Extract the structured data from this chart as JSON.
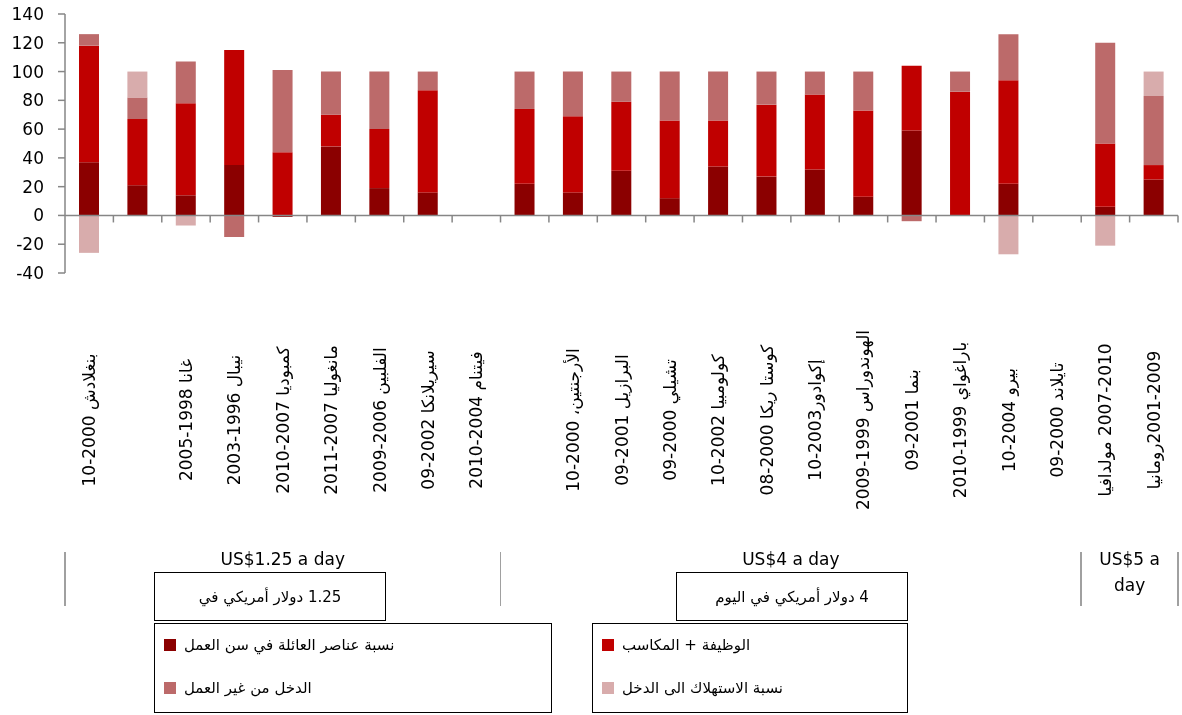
{
  "chart_data": {
    "type": "bar",
    "stacked": true,
    "categories": [
      "بنغلادش 2000-10",
      null,
      "غانا 1998-2005",
      "نيبال 1996-2003",
      "كمبوديا 2007-2010",
      "مانغوليا 2007-2011",
      "الفلبين 2006-2009",
      "سيريلانكا 2002-09",
      "فيتنام 2004-2010",
      null,
      "الأرجنتين، 2000-10",
      "البرازيل 2001-09",
      "تشيلي 2000-09",
      "كولومبيا 2002-10",
      "كوستا ريكا 2000-08",
      "إكوادور2003-10",
      "الهوندوراس 1999-2009",
      "بنما 2001-09",
      "باراغواي 1999-2010",
      "بيرو 2004-10",
      "تايلاند 2000-09",
      "2007-2010 مولدافيا",
      "2001-2009رومانيا"
    ],
    "series": [
      {
        "name": "نسبة عناصر العائلة في سن العمل",
        "color": "#8b0000",
        "values": [
          37,
          21,
          14,
          35,
          -1,
          48,
          19,
          16,
          null,
          22,
          16,
          31,
          12,
          34,
          27,
          32,
          13,
          59,
          null,
          22,
          null,
          6,
          25
        ]
      },
      {
        "name": "الوظيفة + المكاسب",
        "color": "#c00000",
        "values": [
          81,
          46,
          64,
          80,
          44,
          22,
          41,
          71,
          null,
          52,
          53,
          48,
          54,
          32,
          50,
          52,
          60,
          45,
          86,
          72,
          null,
          44,
          10
        ]
      },
      {
        "name": "الدخل من غير العمل",
        "color": "#bc6a6a",
        "values": [
          8,
          15,
          29,
          -15,
          57,
          30,
          40,
          13,
          null,
          26,
          31,
          21,
          34,
          34,
          23,
          16,
          27,
          -4,
          14,
          32,
          null,
          70,
          48
        ]
      },
      {
        "name": "نسبة الاستهلاك الى الدخل",
        "color": "#d8acac",
        "values": [
          -26,
          18,
          -7,
          null,
          null,
          null,
          null,
          null,
          null,
          null,
          null,
          null,
          null,
          null,
          null,
          null,
          null,
          null,
          null,
          -27,
          null,
          -21,
          17
        ]
      }
    ],
    "ylim": [
      -40,
      140
    ],
    "yticks": [
      -40,
      -20,
      0,
      20,
      40,
      60,
      80,
      100,
      120,
      140
    ],
    "ref_lines": [
      {
        "axis": "y",
        "value": 0,
        "color": "#868686"
      }
    ],
    "legend": "bottom",
    "annotations": [
      "US$1.25 a day",
      "US$4 a day",
      "US$5 a day",
      "1.25 دولار أمريكي في",
      "4 دولار أمريكي في اليوم"
    ]
  }
}
